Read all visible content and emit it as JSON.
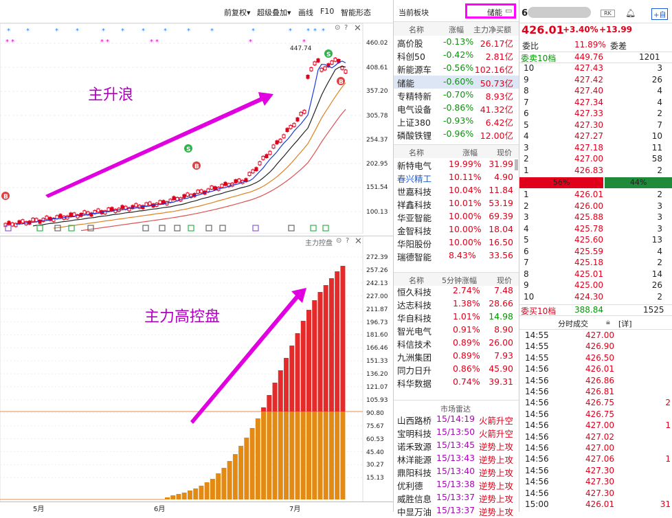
{
  "toolbar": {
    "items": [
      "前复权▾",
      "超级叠加▾",
      "画线",
      "F10",
      "智能形态"
    ]
  },
  "upper_chart": {
    "label": "主升浪",
    "price_marker": "447.74",
    "y_axis": [
      "460.02",
      "408.61",
      "357.20",
      "305.78",
      "254.37",
      "202.95",
      "151.54",
      "100.13"
    ],
    "signal_s": "S",
    "signal_b": "B"
  },
  "lower_chart": {
    "label": "主力高控盘",
    "title": "主力控盘",
    "y_axis": [
      "272.39",
      "257.26",
      "242.13",
      "227.00",
      "211.87",
      "196.73",
      "181.60",
      "166.46",
      "151.33",
      "136.20",
      "121.07",
      "105.93",
      "90.80",
      "75.67",
      "60.53",
      "45.40",
      "30.27",
      "15.13"
    ]
  },
  "x_axis": [
    "5月",
    "6月",
    "7月"
  ],
  "sectors": {
    "header": "当前板块",
    "tag": "储能",
    "cols": [
      "名称",
      "涨幅",
      "主力净买额"
    ],
    "rows": [
      {
        "name": "高价股",
        "chg": "-0.13%",
        "amt": "26.17亿"
      },
      {
        "name": "科创50",
        "chg": "-0.42%",
        "amt": "2.81亿"
      },
      {
        "name": "新能源车",
        "chg": "-0.56%",
        "amt": "102.16亿"
      },
      {
        "name": "储能",
        "chg": "-0.60%",
        "amt": "50.73亿"
      },
      {
        "name": "专精特新",
        "chg": "-0.70%",
        "amt": "8.93亿"
      },
      {
        "name": "电气设备",
        "chg": "-0.86%",
        "amt": "41.32亿"
      },
      {
        "name": "上证380",
        "chg": "-0.93%",
        "amt": "6.42亿"
      },
      {
        "name": "磷酸铁锂",
        "chg": "-0.96%",
        "amt": "12.00亿"
      }
    ]
  },
  "gainers": {
    "cols": [
      "名称",
      "涨幅",
      "现价"
    ],
    "rows": [
      {
        "name": "新特电气",
        "chg": "19.99%",
        "price": "31.99"
      },
      {
        "name": "春兴精工",
        "chg": "10.11%",
        "price": "4.90"
      },
      {
        "name": "世嘉科技",
        "chg": "10.04%",
        "price": "11.84"
      },
      {
        "name": "祥鑫科技",
        "chg": "10.01%",
        "price": "53.19"
      },
      {
        "name": "华亚智能",
        "chg": "10.00%",
        "price": "69.39"
      },
      {
        "name": "金智科技",
        "chg": "10.00%",
        "price": "18.04"
      },
      {
        "name": "华阳股份",
        "chg": "10.00%",
        "price": "16.50"
      },
      {
        "name": "瑞德智能",
        "chg": "8.43%",
        "price": "33.56"
      }
    ]
  },
  "five_min": {
    "cols": [
      "名称",
      "5分钟涨幅",
      "现价"
    ],
    "rows": [
      {
        "name": "恒久科技",
        "chg": "2.74%",
        "price": "7.48"
      },
      {
        "name": "达志科技",
        "chg": "1.38%",
        "price": "28.66"
      },
      {
        "name": "华自科技",
        "chg": "1.01%",
        "price": "14.98"
      },
      {
        "name": "智光电气",
        "chg": "0.91%",
        "price": "8.90"
      },
      {
        "name": "科信技术",
        "chg": "0.89%",
        "price": "26.00"
      },
      {
        "name": "九洲集团",
        "chg": "0.89%",
        "price": "7.93"
      },
      {
        "name": "同力日升",
        "chg": "0.86%",
        "price": "45.90"
      },
      {
        "name": "科华数据",
        "chg": "0.74%",
        "price": "39.31"
      }
    ]
  },
  "radar": {
    "title": "市场雷达",
    "rows": [
      {
        "name": "山西路桥",
        "time": "15/14:19",
        "evt": "火箭升空"
      },
      {
        "name": "宝明科技",
        "time": "15/13:50",
        "evt": "火箭升空"
      },
      {
        "name": "诺禾致源",
        "time": "15/13:45",
        "evt": "逆势上攻"
      },
      {
        "name": "林洋能源",
        "time": "15/13:43",
        "evt": "逆势上攻"
      },
      {
        "name": "鼎阳科技",
        "time": "15/13:40",
        "evt": "逆势上攻"
      },
      {
        "name": "优利德",
        "time": "15/13:38",
        "evt": "逆势上攻"
      },
      {
        "name": "威胜信息",
        "time": "15/13:37",
        "evt": "逆势上攻"
      },
      {
        "name": "中显万油",
        "time": "15/13:37",
        "evt": "逆势上攻"
      }
    ]
  },
  "quote": {
    "code_prefix": "6",
    "btn_rk": "RK",
    "btn_add": "+自",
    "price": "426.01",
    "pct": "+3.40%",
    "chg": "+13.99",
    "weibi_label": "委比",
    "weibi": "11.89%",
    "weicha_label": "委差",
    "sell_total_label": "委卖10档",
    "sell_total_price": "449.76",
    "sell_total_vol": "1201",
    "buy_total_label": "委买10档",
    "buy_total_price": "388.84",
    "buy_total_vol": "1525",
    "bar_left": "56%",
    "bar_right": "44%",
    "bar_fraction": 0.56
  },
  "asks": [
    {
      "lvl": "10",
      "price": "427.43",
      "vol": "3"
    },
    {
      "lvl": "9",
      "price": "427.42",
      "vol": "26"
    },
    {
      "lvl": "8",
      "price": "427.40",
      "vol": "4"
    },
    {
      "lvl": "7",
      "price": "427.34",
      "vol": "4"
    },
    {
      "lvl": "6",
      "price": "427.33",
      "vol": "2"
    },
    {
      "lvl": "5",
      "price": "427.30",
      "vol": "7"
    },
    {
      "lvl": "4",
      "price": "427.27",
      "vol": "10"
    },
    {
      "lvl": "3",
      "price": "427.18",
      "vol": "11"
    },
    {
      "lvl": "2",
      "price": "427.00",
      "vol": "58"
    },
    {
      "lvl": "1",
      "price": "426.83",
      "vol": "2"
    }
  ],
  "bids": [
    {
      "lvl": "1",
      "price": "426.01",
      "vol": "2"
    },
    {
      "lvl": "2",
      "price": "426.00",
      "vol": "3"
    },
    {
      "lvl": "3",
      "price": "425.88",
      "vol": "3"
    },
    {
      "lvl": "4",
      "price": "425.78",
      "vol": "3"
    },
    {
      "lvl": "5",
      "price": "425.60",
      "vol": "13"
    },
    {
      "lvl": "6",
      "price": "425.59",
      "vol": "4"
    },
    {
      "lvl": "7",
      "price": "425.18",
      "vol": "2"
    },
    {
      "lvl": "8",
      "price": "425.01",
      "vol": "14"
    },
    {
      "lvl": "9",
      "price": "425.00",
      "vol": "26"
    },
    {
      "lvl": "10",
      "price": "424.30",
      "vol": "2"
    }
  ],
  "trades": {
    "title": "分时成交",
    "detail": "[详]",
    "rows": [
      {
        "time": "14:55",
        "price": "427.00",
        "vol": ""
      },
      {
        "time": "14:55",
        "price": "426.90",
        "vol": ""
      },
      {
        "time": "14:55",
        "price": "426.50",
        "vol": ""
      },
      {
        "time": "14:56",
        "price": "426.01",
        "vol": ""
      },
      {
        "time": "14:56",
        "price": "426.86",
        "vol": ""
      },
      {
        "time": "14:56",
        "price": "426.81",
        "vol": ""
      },
      {
        "time": "14:56",
        "price": "426.75",
        "vol": "2"
      },
      {
        "time": "14:56",
        "price": "426.75",
        "vol": ""
      },
      {
        "time": "14:56",
        "price": "427.00",
        "vol": "1"
      },
      {
        "time": "14:56",
        "price": "427.02",
        "vol": ""
      },
      {
        "time": "14:56",
        "price": "427.00",
        "vol": ""
      },
      {
        "time": "14:56",
        "price": "427.06",
        "vol": "1"
      },
      {
        "time": "14:56",
        "price": "427.30",
        "vol": ""
      },
      {
        "time": "14:56",
        "price": "427.30",
        "vol": ""
      },
      {
        "time": "14:56",
        "price": "427.30",
        "vol": ""
      },
      {
        "time": "15:00",
        "price": "426.01",
        "vol": "31"
      }
    ]
  },
  "colors": {
    "up": "#e0001b",
    "down": "#009900",
    "highlight": "#ff00ff",
    "accent": "#b000c0"
  }
}
